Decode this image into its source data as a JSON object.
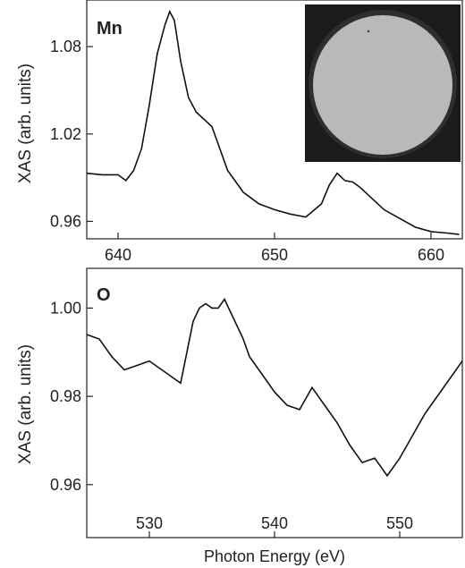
{
  "chart_data": [
    {
      "type": "line",
      "panel_label": "Mn",
      "ylabel": "XAS (arb. units)",
      "xlim": [
        638,
        662
      ],
      "ylim": [
        0.948,
        1.112
      ],
      "xticks": [
        640,
        650,
        660
      ],
      "yticks": [
        0.96,
        1.02,
        1.08
      ],
      "ytick_labels": [
        "0.96",
        "1.02",
        "1.08"
      ],
      "inset": "circular sample photograph (top-right)",
      "series": [
        {
          "x": [
            638,
            639,
            640,
            640.5,
            641,
            641.5,
            642,
            642.5,
            643,
            643.3,
            643.6,
            644,
            644.5,
            645,
            645.5,
            646,
            646.5,
            647,
            648,
            649,
            650,
            651,
            652,
            653,
            653.5,
            654,
            654.5,
            655,
            655.5,
            656,
            657,
            658,
            659,
            660,
            661,
            661.8
          ],
          "y": [
            0.993,
            0.992,
            0.992,
            0.988,
            0.995,
            1.01,
            1.04,
            1.075,
            1.095,
            1.104,
            1.098,
            1.07,
            1.045,
            1.035,
            1.03,
            1.025,
            1.01,
            0.995,
            0.98,
            0.972,
            0.968,
            0.965,
            0.963,
            0.972,
            0.985,
            0.993,
            0.988,
            0.987,
            0.983,
            0.978,
            0.968,
            0.962,
            0.956,
            0.953,
            0.952,
            0.951
          ]
        }
      ]
    },
    {
      "type": "line",
      "panel_label": "O",
      "xlabel": "Photon Energy (eV)",
      "ylabel": "XAS (arb. units)",
      "xlim": [
        525,
        555
      ],
      "ylim": [
        0.948,
        1.009
      ],
      "xticks": [
        530,
        540,
        550
      ],
      "yticks": [
        0.96,
        0.98,
        1.0
      ],
      "ytick_labels": [
        "0.96",
        "0.98",
        "1.00"
      ],
      "series": [
        {
          "x": [
            525,
            526,
            527,
            528,
            529,
            530,
            531,
            532,
            532.5,
            533,
            533.5,
            534,
            534.5,
            535,
            535.5,
            536,
            536.5,
            537,
            537.5,
            538,
            539,
            540,
            541,
            542,
            543,
            544,
            545,
            546,
            547,
            548,
            549,
            550,
            551,
            552,
            553,
            554,
            555
          ],
          "y": [
            0.994,
            0.993,
            0.989,
            0.986,
            0.987,
            0.988,
            0.986,
            0.984,
            0.983,
            0.99,
            0.997,
            1.0,
            1.001,
            1.0,
            1.0,
            1.002,
            0.999,
            0.996,
            0.993,
            0.989,
            0.985,
            0.981,
            0.978,
            0.977,
            0.982,
            0.978,
            0.974,
            0.969,
            0.965,
            0.966,
            0.962,
            0.966,
            0.971,
            0.976,
            0.98,
            0.984,
            0.988
          ]
        }
      ]
    }
  ]
}
